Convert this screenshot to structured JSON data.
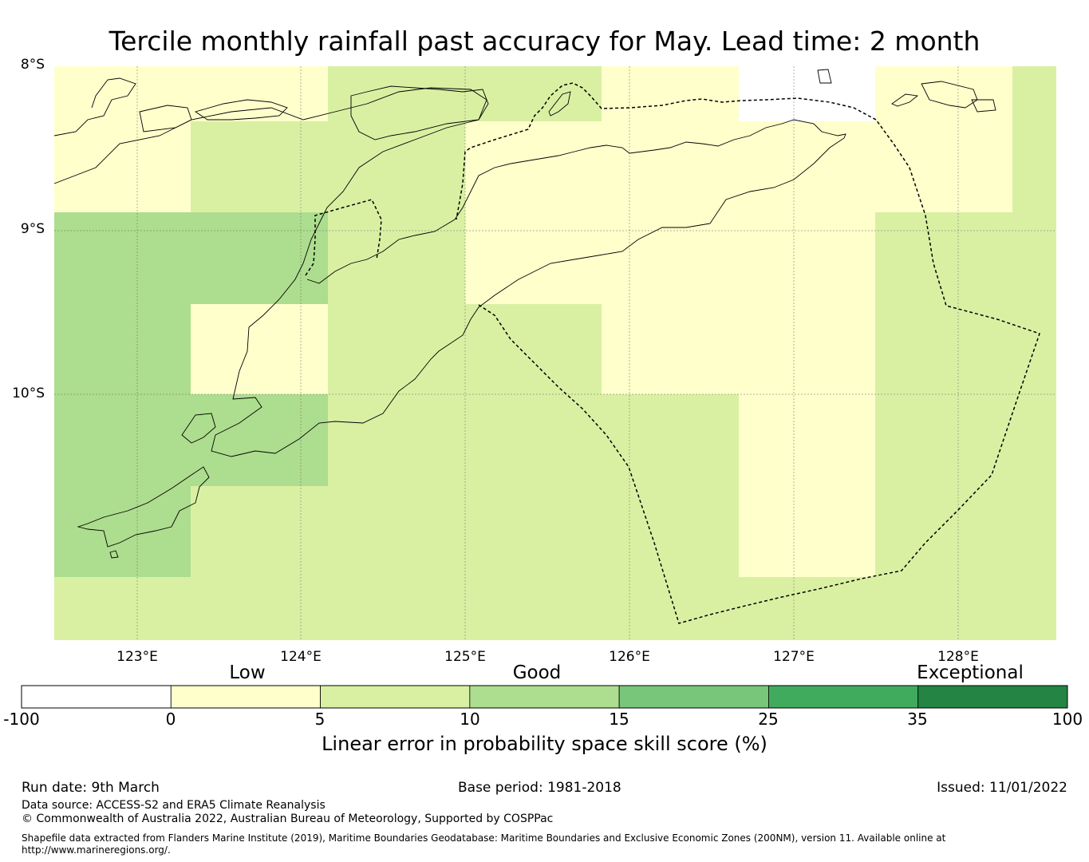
{
  "title": "Tercile monthly rainfall past accuracy for May. Lead time: 2 month",
  "map": {
    "lat_labels": [
      "8°S",
      "9°S",
      "10°S"
    ],
    "lon_labels": [
      "123°E",
      "124°E",
      "125°E",
      "126°E",
      "127°E",
      "128°E"
    ]
  },
  "colorbar": {
    "categories": [
      "Low",
      "Good",
      "Exceptional"
    ],
    "ticks": [
      "-100",
      "0",
      "5",
      "10",
      "15",
      "25",
      "35",
      "100"
    ],
    "colors": [
      "#ffffff",
      "#ffffcc",
      "#d9f0a3",
      "#addd8e",
      "#78c679",
      "#41ab5d",
      "#238443"
    ],
    "label": "Linear error in probability space skill score (%)"
  },
  "footer": {
    "run_date": "Run date: 9th March",
    "base_period": "Base period: 1981-2018",
    "issued": "Issued: 11/01/2022",
    "data_source": "Data source: ACCESS-S2 and ERA5 Climate Reanalysis",
    "copyright": "© Commonwealth of Australia 2022, Australian Bureau of Meteorology, Supported by COSPPac",
    "shapefile_line1": "Shapefile data extracted from Flanders Marine Institute (2019), Maritime Boundaries Geodatabase: Maritime Boundaries and Exclusive Economic Zones (200NM), version 11. Available online at",
    "shapefile_line2": "http://www.marineregions.org/."
  }
}
